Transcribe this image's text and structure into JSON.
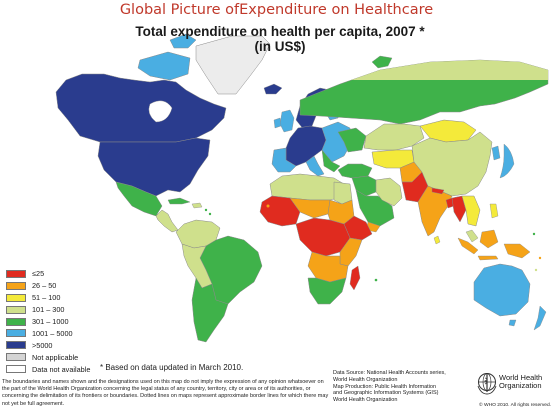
{
  "header": {
    "slide_title": "Global  Picture ofExpenditure on Healthcare",
    "map_title_line1": "Total expenditure on health per capita, 2007 *",
    "map_title_line2": "(in US$)"
  },
  "legend": {
    "items": [
      {
        "label": "≤25",
        "color": "#e02b1f"
      },
      {
        "label": "26 – 50",
        "color": "#f5a318"
      },
      {
        "label": "51 – 100",
        "color": "#f4ea3a"
      },
      {
        "label": "101 – 300",
        "color": "#cfe08c"
      },
      {
        "label": "301 – 1000",
        "color": "#3fb24a"
      },
      {
        "label": "1001 – 5000",
        "color": "#4aaee2"
      },
      {
        "label": ">5000",
        "color": "#2a3c8e"
      },
      {
        "label": "Not applicable",
        "color": "#d4d4d4"
      },
      {
        "label": "Data not available",
        "color": "#ffffff"
      }
    ]
  },
  "footnote": "* Based on data updated in March 2010.",
  "disclaimer": "The boundaries and names shown and the designations used on this map do not imply the expression of any opinion whatsoever on the part of the World Health Organization concerning the legal status of any country, territory, city or area or of its authorities, or concerning the delimitation of its frontiers or boundaries. Dotted lines on maps represent approximate border lines for which there may not yet be full agreement.",
  "source": {
    "line1": "Data Source: National Health Accounts series,",
    "line2": "World Health Organization",
    "line3": "Map Production: Public Health Information",
    "line4": "and Geographic Information Systems (GIS)",
    "line5": "World Health Organization"
  },
  "organization": {
    "name_line1": "World Health",
    "name_line2": "Organization",
    "copyright": "© WHO 2010. All rights reserved."
  },
  "colors": {
    "title_red": "#c0392b",
    "ocean": "#ffffff",
    "border": "#8a8a8a"
  }
}
